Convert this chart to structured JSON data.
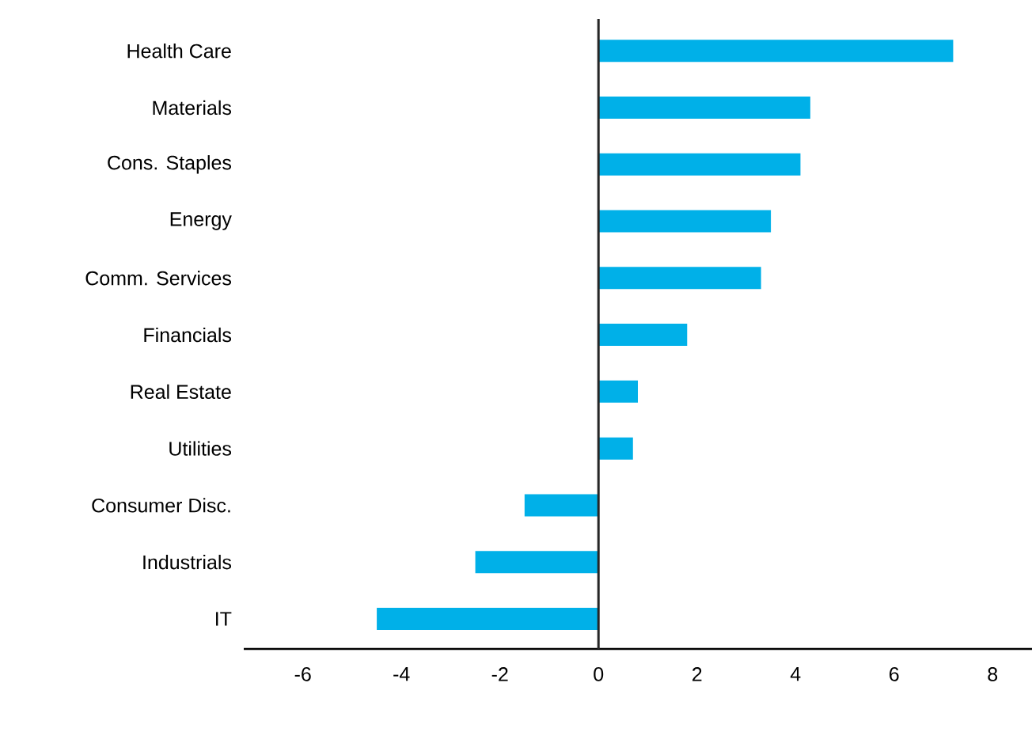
{
  "chart_data": {
    "type": "bar",
    "orientation": "horizontal",
    "categories": [
      "Health Care",
      "Materials",
      "Cons. Staples",
      "Energy",
      "Comm. Services",
      "Financials",
      "Real Estate",
      "Utilities",
      "Consumer Disc.",
      "Industrials",
      "IT"
    ],
    "values": [
      7.2,
      4.3,
      4.1,
      3.5,
      3.3,
      1.8,
      0.8,
      0.7,
      -1.5,
      -2.5,
      -4.5
    ],
    "color": "#00b0e8",
    "xlim": [
      -7.2,
      8.8
    ],
    "xticks": [
      -6,
      -4,
      -2,
      0,
      2,
      4,
      6,
      8
    ]
  }
}
